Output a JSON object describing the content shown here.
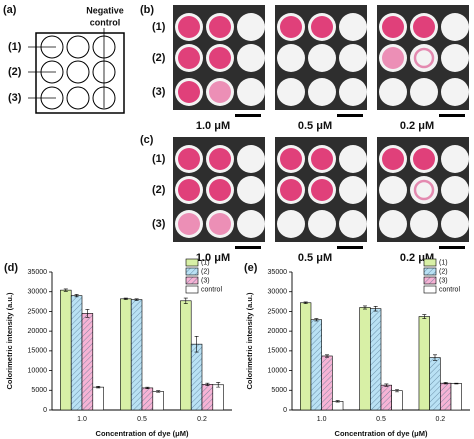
{
  "panel_a": {
    "label": "(a)",
    "rows": [
      "(1)",
      "(2)",
      "(3)"
    ],
    "negative_control": [
      "Negative",
      "control"
    ]
  },
  "panel_b": {
    "label": "(b)",
    "rows": [
      "(1)",
      "(2)",
      "(3)"
    ],
    "concentrations": [
      "1.0 μM",
      "0.5 μM",
      "0.2 μM"
    ]
  },
  "panel_c": {
    "label": "(c)",
    "rows": [
      "(1)",
      "(2)",
      "(3)"
    ],
    "concentrations": [
      "1.0 μM",
      "0.5 μM",
      "0.2 μM"
    ]
  },
  "chart_data": [
    {
      "type": "bar",
      "label": "(d)",
      "categories": [
        "1.0",
        "0.5",
        "0.2"
      ],
      "xlabel": "Concentration of dye (μM)",
      "ylabel": "Colorimetric intensity (a.u.)",
      "ylim": [
        0,
        35000
      ],
      "yticks": [
        0,
        5000,
        10000,
        15000,
        20000,
        25000,
        30000,
        35000
      ],
      "legend": "upper right",
      "series": [
        {
          "name": "(1)",
          "color": "#d8f0a6",
          "hatch": false,
          "values": [
            30400,
            28200,
            27700
          ],
          "errors": [
            300,
            200,
            700
          ]
        },
        {
          "name": "(2)",
          "color": "#b9e1f4",
          "hatch": true,
          "values": [
            29000,
            28000,
            16700
          ],
          "errors": [
            300,
            200,
            2000
          ]
        },
        {
          "name": "(3)",
          "color": "#f6b3d5",
          "hatch": true,
          "values": [
            24500,
            5600,
            6500
          ],
          "errors": [
            1000,
            200,
            300
          ]
        },
        {
          "name": "control",
          "color": "#ffffff",
          "hatch": false,
          "values": [
            5800,
            4700,
            6400
          ],
          "errors": [
            200,
            200,
            600
          ]
        }
      ]
    },
    {
      "type": "bar",
      "label": "(e)",
      "categories": [
        "1.0",
        "0.5",
        "0.2"
      ],
      "xlabel": "Concentration of dye (μM)",
      "ylabel": "Colorimetric intensity (a.u.)",
      "ylim": [
        0,
        35000
      ],
      "yticks": [
        0,
        5000,
        10000,
        15000,
        20000,
        25000,
        30000,
        35000
      ],
      "legend": "upper right",
      "series": [
        {
          "name": "(1)",
          "color": "#d8f0a6",
          "hatch": false,
          "values": [
            27200,
            26000,
            23700
          ],
          "errors": [
            200,
            400,
            500
          ]
        },
        {
          "name": "(2)",
          "color": "#b9e1f4",
          "hatch": true,
          "values": [
            22900,
            25700,
            13300
          ],
          "errors": [
            300,
            600,
            700
          ]
        },
        {
          "name": "(3)",
          "color": "#f6b3d5",
          "hatch": true,
          "values": [
            13700,
            6300,
            6800
          ],
          "errors": [
            300,
            300,
            200
          ]
        },
        {
          "name": "control",
          "color": "#ffffff",
          "hatch": false,
          "values": [
            2200,
            4900,
            6700
          ],
          "errors": [
            200,
            300,
            100
          ]
        }
      ]
    }
  ]
}
